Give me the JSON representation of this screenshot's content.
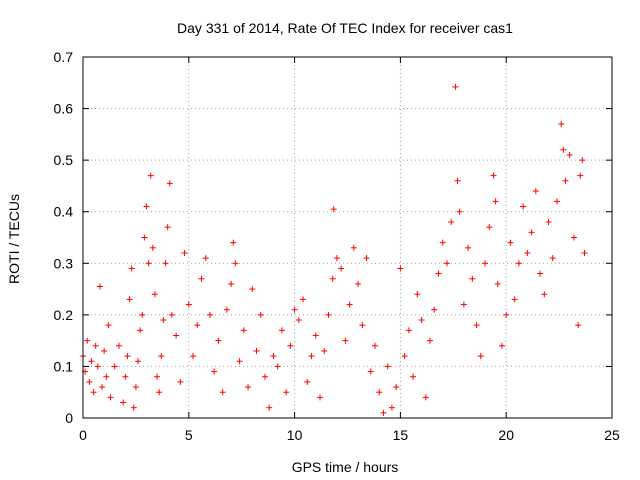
{
  "chart_data": {
    "type": "scatter",
    "title": "Day 331 of 2014, Rate Of TEC Index for receiver cas1",
    "xlabel": "GPS time / hours",
    "ylabel": "ROTI / TECUs",
    "xlim": [
      0,
      25
    ],
    "ylim": [
      0,
      0.7
    ],
    "xticks": [
      0,
      5,
      10,
      15,
      20,
      25
    ],
    "yticks": [
      0,
      0.1,
      0.2,
      0.3,
      0.4,
      0.5,
      0.6,
      0.7
    ],
    "grid": true,
    "marker": "+",
    "series": [
      {
        "name": "ROTI",
        "color": "#ff0000",
        "points": [
          [
            0.0,
            0.12
          ],
          [
            0.1,
            0.09
          ],
          [
            0.2,
            0.15
          ],
          [
            0.3,
            0.07
          ],
          [
            0.4,
            0.11
          ],
          [
            0.5,
            0.05
          ],
          [
            0.6,
            0.14
          ],
          [
            0.7,
            0.1
          ],
          [
            0.8,
            0.255
          ],
          [
            0.9,
            0.06
          ],
          [
            1.0,
            0.13
          ],
          [
            1.1,
            0.08
          ],
          [
            1.2,
            0.18
          ],
          [
            1.3,
            0.04
          ],
          [
            1.5,
            0.1
          ],
          [
            1.7,
            0.14
          ],
          [
            1.9,
            0.03
          ],
          [
            2.0,
            0.08
          ],
          [
            2.1,
            0.12
          ],
          [
            2.2,
            0.23
          ],
          [
            2.3,
            0.29
          ],
          [
            2.4,
            0.02
          ],
          [
            2.5,
            0.06
          ],
          [
            2.6,
            0.11
          ],
          [
            2.7,
            0.17
          ],
          [
            2.8,
            0.2
          ],
          [
            2.9,
            0.35
          ],
          [
            3.0,
            0.41
          ],
          [
            3.1,
            0.3
          ],
          [
            3.2,
            0.47
          ],
          [
            3.3,
            0.33
          ],
          [
            3.4,
            0.24
          ],
          [
            3.5,
            0.08
          ],
          [
            3.6,
            0.05
          ],
          [
            3.7,
            0.12
          ],
          [
            3.8,
            0.19
          ],
          [
            3.9,
            0.3
          ],
          [
            4.0,
            0.37
          ],
          [
            4.1,
            0.455
          ],
          [
            4.2,
            0.2
          ],
          [
            4.4,
            0.16
          ],
          [
            4.6,
            0.07
          ],
          [
            4.8,
            0.32
          ],
          [
            5.0,
            0.22
          ],
          [
            5.2,
            0.12
          ],
          [
            5.4,
            0.18
          ],
          [
            5.6,
            0.27
          ],
          [
            5.8,
            0.31
          ],
          [
            6.0,
            0.2
          ],
          [
            6.2,
            0.09
          ],
          [
            6.4,
            0.15
          ],
          [
            6.6,
            0.05
          ],
          [
            6.8,
            0.21
          ],
          [
            7.0,
            0.26
          ],
          [
            7.1,
            0.34
          ],
          [
            7.2,
            0.3
          ],
          [
            7.4,
            0.11
          ],
          [
            7.6,
            0.17
          ],
          [
            7.8,
            0.06
          ],
          [
            8.0,
            0.25
          ],
          [
            8.2,
            0.13
          ],
          [
            8.4,
            0.2
          ],
          [
            8.6,
            0.08
          ],
          [
            8.8,
            0.02
          ],
          [
            9.0,
            0.12
          ],
          [
            9.2,
            0.1
          ],
          [
            9.4,
            0.17
          ],
          [
            9.6,
            0.05
          ],
          [
            9.8,
            0.14
          ],
          [
            10.0,
            0.21
          ],
          [
            10.2,
            0.19
          ],
          [
            10.4,
            0.23
          ],
          [
            10.6,
            0.07
          ],
          [
            10.8,
            0.12
          ],
          [
            11.0,
            0.16
          ],
          [
            11.2,
            0.04
          ],
          [
            11.4,
            0.13
          ],
          [
            11.6,
            0.2
          ],
          [
            11.8,
            0.27
          ],
          [
            11.85,
            0.405
          ],
          [
            12.0,
            0.31
          ],
          [
            12.2,
            0.29
          ],
          [
            12.4,
            0.15
          ],
          [
            12.6,
            0.22
          ],
          [
            12.8,
            0.33
          ],
          [
            13.0,
            0.26
          ],
          [
            13.2,
            0.18
          ],
          [
            13.4,
            0.31
          ],
          [
            13.6,
            0.09
          ],
          [
            13.8,
            0.14
          ],
          [
            14.0,
            0.05
          ],
          [
            14.2,
            0.01
          ],
          [
            14.4,
            0.1
          ],
          [
            14.6,
            0.02
          ],
          [
            14.8,
            0.06
          ],
          [
            15.0,
            0.29
          ],
          [
            15.2,
            0.12
          ],
          [
            15.4,
            0.17
          ],
          [
            15.6,
            0.08
          ],
          [
            15.8,
            0.24
          ],
          [
            16.0,
            0.19
          ],
          [
            16.2,
            0.04
          ],
          [
            16.4,
            0.15
          ],
          [
            16.6,
            0.21
          ],
          [
            16.8,
            0.28
          ],
          [
            17.0,
            0.34
          ],
          [
            17.2,
            0.3
          ],
          [
            17.4,
            0.38
          ],
          [
            17.6,
            0.642
          ],
          [
            17.7,
            0.46
          ],
          [
            17.8,
            0.4
          ],
          [
            18.0,
            0.22
          ],
          [
            18.2,
            0.33
          ],
          [
            18.4,
            0.27
          ],
          [
            18.6,
            0.18
          ],
          [
            18.8,
            0.12
          ],
          [
            19.0,
            0.3
          ],
          [
            19.2,
            0.37
          ],
          [
            19.4,
            0.47
          ],
          [
            19.5,
            0.42
          ],
          [
            19.6,
            0.26
          ],
          [
            19.8,
            0.14
          ],
          [
            20.0,
            0.2
          ],
          [
            20.2,
            0.34
          ],
          [
            20.4,
            0.23
          ],
          [
            20.6,
            0.3
          ],
          [
            20.8,
            0.41
          ],
          [
            21.0,
            0.32
          ],
          [
            21.2,
            0.36
          ],
          [
            21.4,
            0.44
          ],
          [
            21.6,
            0.28
          ],
          [
            21.8,
            0.24
          ],
          [
            22.0,
            0.38
          ],
          [
            22.2,
            0.31
          ],
          [
            22.4,
            0.42
          ],
          [
            22.6,
            0.57
          ],
          [
            22.7,
            0.52
          ],
          [
            22.8,
            0.46
          ],
          [
            23.0,
            0.51
          ],
          [
            23.2,
            0.35
          ],
          [
            23.4,
            0.18
          ],
          [
            23.5,
            0.47
          ],
          [
            23.6,
            0.5
          ],
          [
            23.7,
            0.32
          ]
        ]
      }
    ]
  }
}
